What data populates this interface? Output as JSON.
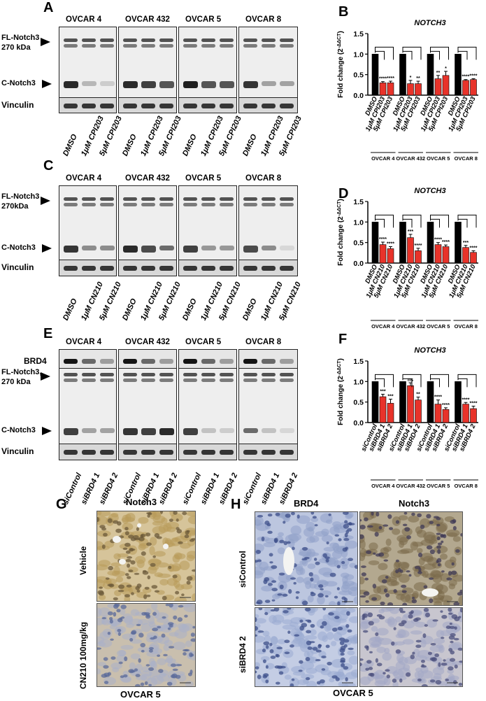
{
  "panels": {
    "A": {
      "letter": "A",
      "cell_lines": [
        "OVCAR 4",
        "OVCAR 432",
        "OVCAR 5",
        "OVCAR 8"
      ],
      "fl_label": "FL-Notch3",
      "fl_kda": "270 kDa",
      "c_label": "C-Notch3",
      "loading": "Vinculin",
      "lanes": [
        "DMSO",
        "1μM CPI203",
        "5μM CPI203"
      ]
    },
    "C": {
      "letter": "C",
      "cell_lines": [
        "OVCAR 4",
        "OVCAR 432",
        "OVCAR 5",
        "OVCAR 8"
      ],
      "fl_label": "FL-Notch3",
      "fl_kda": "270kDa",
      "c_label": "C-Notch3",
      "loading": "Vinculin",
      "lanes": [
        "DMSO",
        "1μM CN210",
        "5μM CN210"
      ]
    },
    "E": {
      "letter": "E",
      "cell_lines": [
        "OVCAR 4",
        "OVCAR 432",
        "OVCAR 5",
        "OVCAR 8"
      ],
      "brd4_label": "BRD4",
      "fl_label": "FL-Notch3,",
      "fl_kda": "270 kDa",
      "c_label": "C-Notch3",
      "loading": "Vinculin",
      "lanes": [
        "siControl",
        "siBRD4 1",
        "siBRD4 2"
      ]
    },
    "G": {
      "letter": "G",
      "title": "Notch3",
      "rows": [
        "Vehicle",
        "CN210 100mg/kg"
      ],
      "footer": "OVCAR 5"
    },
    "H": {
      "letter": "H",
      "columns": [
        "BRD4",
        "Notch3"
      ],
      "rows": [
        "siControl",
        "siBRD4 2"
      ],
      "footer": "OVCAR 5"
    }
  },
  "chart_data": [
    {
      "panel": "B",
      "type": "bar",
      "title": "NOTCH3",
      "ylabel": "Fold change (2^-ΔΔCT)",
      "ylim": [
        0,
        1.5
      ],
      "yticks": [
        0.0,
        0.5,
        1.0,
        1.5
      ],
      "groups": [
        "OVCAR 4",
        "OVCAR 432",
        "OVCAR 5",
        "OVCAR 8"
      ],
      "categories": [
        "DMSO",
        "1μM CPI203",
        "5μM CPI203"
      ],
      "values": [
        [
          1.0,
          0.3,
          0.3
        ],
        [
          1.0,
          0.28,
          0.28
        ],
        [
          1.0,
          0.4,
          0.48
        ],
        [
          1.0,
          0.36,
          0.38
        ]
      ],
      "errors": [
        [
          0,
          0.03,
          0.04
        ],
        [
          0,
          0.08,
          0.06
        ],
        [
          0,
          0.08,
          0.1
        ],
        [
          0,
          0.02,
          0.02
        ]
      ],
      "significance": [
        [
          "",
          "****",
          "****"
        ],
        [
          "",
          "*",
          "**"
        ],
        [
          "",
          "**",
          "*"
        ],
        [
          "",
          "****",
          "****"
        ]
      ]
    },
    {
      "panel": "D",
      "type": "bar",
      "title": "NOTCH3",
      "ylabel": "Fold change (2^-ΔΔCT)",
      "ylim": [
        0,
        1.5
      ],
      "yticks": [
        0.0,
        0.5,
        1.0,
        1.5
      ],
      "groups": [
        "OVCAR 4",
        "OVCAR 432",
        "OVCAR 5",
        "OVCAR 8"
      ],
      "categories": [
        "DMSO",
        "1μM CN210",
        "5μM CN210"
      ],
      "values": [
        [
          1.0,
          0.45,
          0.35
        ],
        [
          1.0,
          0.62,
          0.3
        ],
        [
          1.0,
          0.45,
          0.4
        ],
        [
          1.0,
          0.38,
          0.26
        ]
      ],
      "errors": [
        [
          0,
          0.06,
          0.05
        ],
        [
          0,
          0.08,
          0.06
        ],
        [
          0,
          0.05,
          0.04
        ],
        [
          0,
          0.05,
          0.04
        ]
      ],
      "significance": [
        [
          "",
          "****",
          "****"
        ],
        [
          "",
          "***",
          "****"
        ],
        [
          "",
          "****",
          "****"
        ],
        [
          "",
          "***",
          "****"
        ]
      ]
    },
    {
      "panel": "F",
      "type": "bar",
      "title": "NOTCH3",
      "ylabel": "Fold change (2^-ΔΔCT)",
      "ylim": [
        0,
        1.5
      ],
      "yticks": [
        0.0,
        0.5,
        1.0,
        1.5
      ],
      "groups": [
        "OVCAR 4",
        "OVCAR 432",
        "OVCAR 5",
        "OVCAR 8"
      ],
      "categories": [
        "siControl",
        "siBRD4 1",
        "siBRD4 2"
      ],
      "values": [
        [
          1.0,
          0.63,
          0.47
        ],
        [
          1.0,
          0.9,
          0.55
        ],
        [
          1.0,
          0.45,
          0.32
        ],
        [
          1.0,
          0.45,
          0.34
        ]
      ],
      "errors": [
        [
          0,
          0.06,
          0.1
        ],
        [
          0,
          0.07,
          0.07
        ],
        [
          0,
          0.1,
          0.04
        ],
        [
          0,
          0.04,
          0.06
        ]
      ],
      "significance": [
        [
          "",
          "***",
          "***"
        ],
        [
          "",
          "ns",
          "**"
        ],
        [
          "",
          "****",
          "****"
        ],
        [
          "",
          "****",
          "****"
        ]
      ]
    }
  ],
  "colors": {
    "black_bar": "#000000",
    "red_bar": "#e8332a",
    "blot_bg": "#eeeeee",
    "band_dark": "#2a2a2a",
    "ihc_brown": "#b89a5a",
    "ihc_blue": "#8fa0c9"
  }
}
